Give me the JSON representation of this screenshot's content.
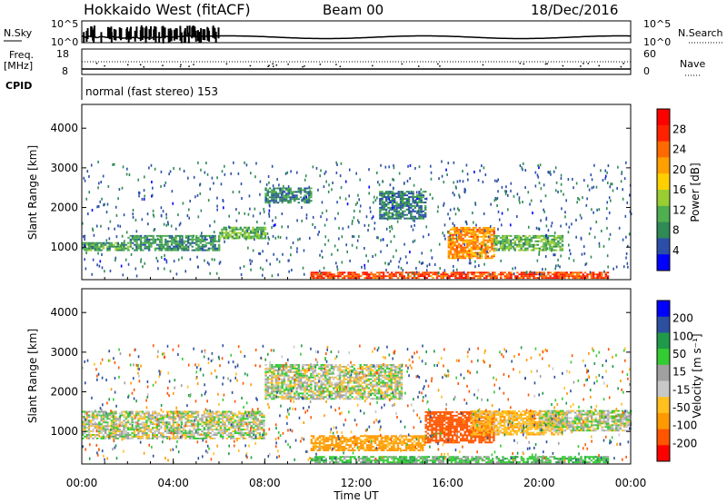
{
  "header": {
    "title": "Hokkaido West (fitACF)",
    "beam": "Beam 00",
    "date": "18/Dec/2016"
  },
  "noise_panel": {
    "left_label": "N.Sky",
    "right_label": "N.Search",
    "tick_top": "10^5",
    "tick_bottom": "10^0"
  },
  "freq_panel": {
    "left_label_1": "Freq.",
    "left_label_2": "[MHz]",
    "left_tick_top": "18",
    "left_tick_bottom": "8",
    "right_label": "Nave",
    "right_tick_top": "60",
    "right_tick_bottom": "0"
  },
  "cpid_panel": {
    "label": "CPID",
    "value": "normal (fast stereo) 153"
  },
  "colors": {
    "power": [
      "#0000ff",
      "#2b4fa8",
      "#2f8a55",
      "#4fae4f",
      "#9acd32",
      "#ffd000",
      "#ff9f00",
      "#ff6a00",
      "#ff2200",
      "#ff0000"
    ],
    "velocity": [
      "#ff0000",
      "#ff5500",
      "#ff9900",
      "#ffc020",
      "#c8c8c8",
      "#a0a0a0",
      "#33cc33",
      "#1f9a4a",
      "#2c4fa0",
      "#0000ff"
    ]
  },
  "chart_data": [
    {
      "type": "heatmap",
      "quantity": "power",
      "ylabel": "Slant Range [km]",
      "xlabel": "",
      "ylim": [
        180,
        4600
      ],
      "y_ticks": [
        "1000",
        "2000",
        "3000",
        "4000"
      ],
      "x_range_hours": [
        0,
        24
      ],
      "colorbar_label": "Power [dB]",
      "colorbar_ticks": [
        "4",
        "8",
        "12",
        "16",
        "20",
        "24",
        "28"
      ],
      "colorbar_range": [
        0,
        32
      ],
      "echo_bands": [
        {
          "t": [
            0,
            2
          ],
          "range_km": [
            900,
            1100
          ],
          "level_db": 10
        },
        {
          "t": [
            2,
            6
          ],
          "range_km": [
            900,
            1300
          ],
          "level_db": 9
        },
        {
          "t": [
            6,
            8
          ],
          "range_km": [
            1200,
            1500
          ],
          "level_db": 12
        },
        {
          "t": [
            8,
            10
          ],
          "range_km": [
            2100,
            2500
          ],
          "level_db": 8
        },
        {
          "t": [
            13,
            15
          ],
          "range_km": [
            1700,
            2400
          ],
          "level_db": 7
        },
        {
          "t": [
            16,
            18
          ],
          "range_km": [
            700,
            1500
          ],
          "level_db": 22
        },
        {
          "t": [
            18,
            21
          ],
          "range_km": [
            900,
            1300
          ],
          "level_db": 12
        },
        {
          "t": [
            10,
            23
          ],
          "range_km": [
            200,
            350
          ],
          "level_db": 26
        }
      ]
    },
    {
      "type": "heatmap",
      "quantity": "velocity",
      "ylabel": "Slant Range [km]",
      "xlabel": "Time UT",
      "ylim": [
        180,
        4600
      ],
      "y_ticks": [
        "1000",
        "2000",
        "3000",
        "4000"
      ],
      "x_ticks": [
        "00:00",
        "04:00",
        "08:00",
        "12:00",
        "16:00",
        "20:00",
        "00:00"
      ],
      "x_range_hours": [
        0,
        24
      ],
      "colorbar_label": "Velocity [m s⁻¹]",
      "colorbar_ticks": [
        "200",
        "100",
        "50",
        "15",
        "-15",
        "-50",
        "-100",
        "-200"
      ],
      "echo_bands": [
        {
          "t": [
            0,
            8
          ],
          "range_km": [
            800,
            1500
          ],
          "velocity": 0
        },
        {
          "t": [
            8,
            14
          ],
          "range_km": [
            1800,
            2700
          ],
          "velocity": 0
        },
        {
          "t": [
            10,
            15
          ],
          "range_km": [
            500,
            900
          ],
          "velocity": -70
        },
        {
          "t": [
            15,
            18
          ],
          "range_km": [
            700,
            1500
          ],
          "velocity": -150
        },
        {
          "t": [
            17,
            21
          ],
          "range_km": [
            900,
            1500
          ],
          "velocity": -40
        },
        {
          "t": [
            20,
            24
          ],
          "range_km": [
            1000,
            1500
          ],
          "velocity": 0
        },
        {
          "t": [
            10,
            23
          ],
          "range_km": [
            200,
            350
          ],
          "velocity": 30
        }
      ]
    }
  ]
}
